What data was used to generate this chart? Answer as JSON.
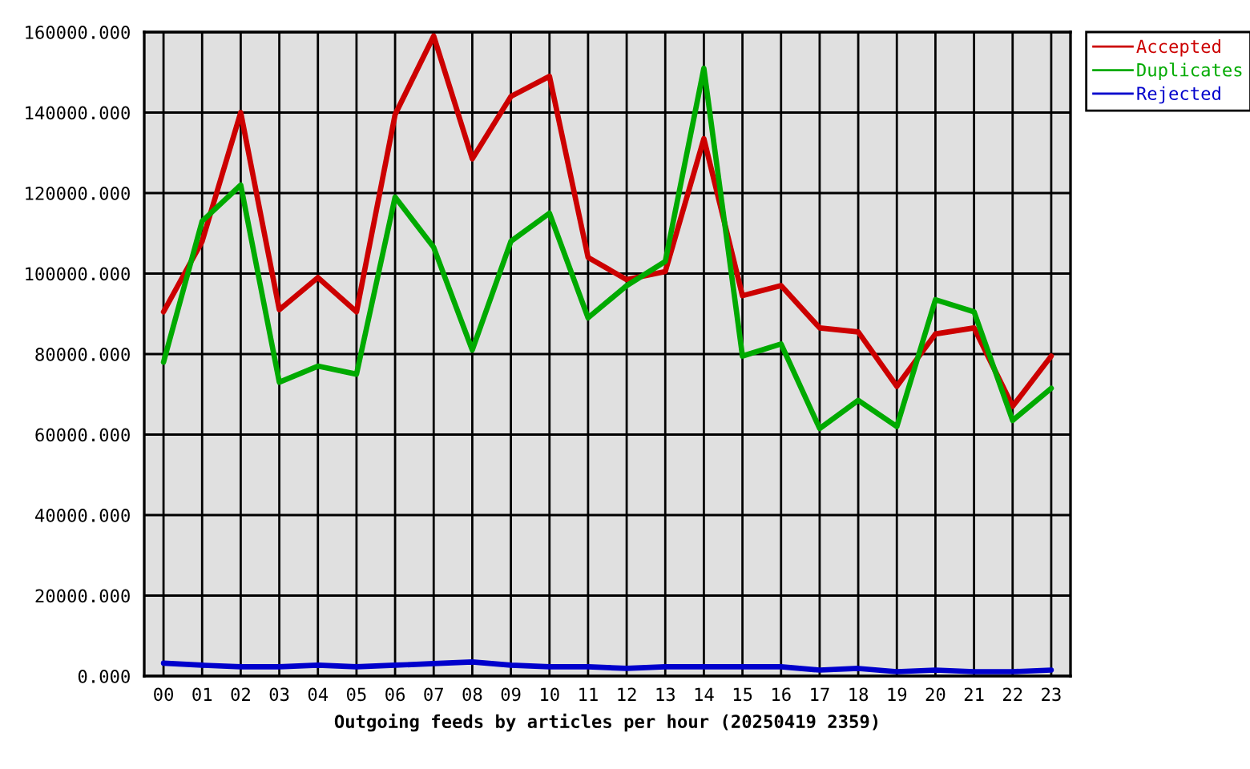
{
  "chart_data": {
    "type": "line",
    "xlabel": "Outgoing feeds by articles per hour (20250419 2359)",
    "categories": [
      "00",
      "01",
      "02",
      "03",
      "04",
      "05",
      "06",
      "07",
      "08",
      "09",
      "10",
      "11",
      "12",
      "13",
      "14",
      "15",
      "16",
      "17",
      "18",
      "19",
      "20",
      "21",
      "22",
      "23"
    ],
    "series": [
      {
        "name": "Accepted",
        "color": "#cc0000",
        "values": [
          90500,
          108000,
          140000,
          91000,
          99000,
          90500,
          139500,
          159000,
          128500,
          144000,
          149000,
          104000,
          98500,
          100500,
          133500,
          94500,
          97000,
          86500,
          85500,
          72000,
          85000,
          86500,
          67000,
          79500
        ]
      },
      {
        "name": "Duplicates",
        "color": "#00aa00",
        "values": [
          78000,
          113000,
          122000,
          73000,
          77000,
          75000,
          119000,
          106500,
          81000,
          108000,
          115000,
          89000,
          97000,
          103000,
          151000,
          79500,
          82500,
          61500,
          68500,
          62000,
          93500,
          90500,
          63500,
          71500
        ]
      },
      {
        "name": "Rejected",
        "color": "#0000cc",
        "values": [
          3200,
          2700,
          2300,
          2300,
          2700,
          2300,
          2700,
          3100,
          3500,
          2700,
          2300,
          2300,
          1900,
          2300,
          2300,
          2300,
          2300,
          1500,
          1900,
          1100,
          1500,
          1100,
          1100,
          1500
        ]
      }
    ],
    "ylim": [
      0,
      160000
    ],
    "yticks": [
      {
        "value": 0,
        "label": "0.000"
      },
      {
        "value": 20000,
        "label": "20000.000"
      },
      {
        "value": 40000,
        "label": "40000.000"
      },
      {
        "value": 60000,
        "label": "60000.000"
      },
      {
        "value": 80000,
        "label": "80000.000"
      },
      {
        "value": 100000,
        "label": "100000.000"
      },
      {
        "value": 120000,
        "label": "120000.000"
      },
      {
        "value": 140000,
        "label": "140000.000"
      },
      {
        "value": 160000,
        "label": "160000.000"
      }
    ],
    "grid": true,
    "legend": "top right",
    "line_style": "solid"
  }
}
